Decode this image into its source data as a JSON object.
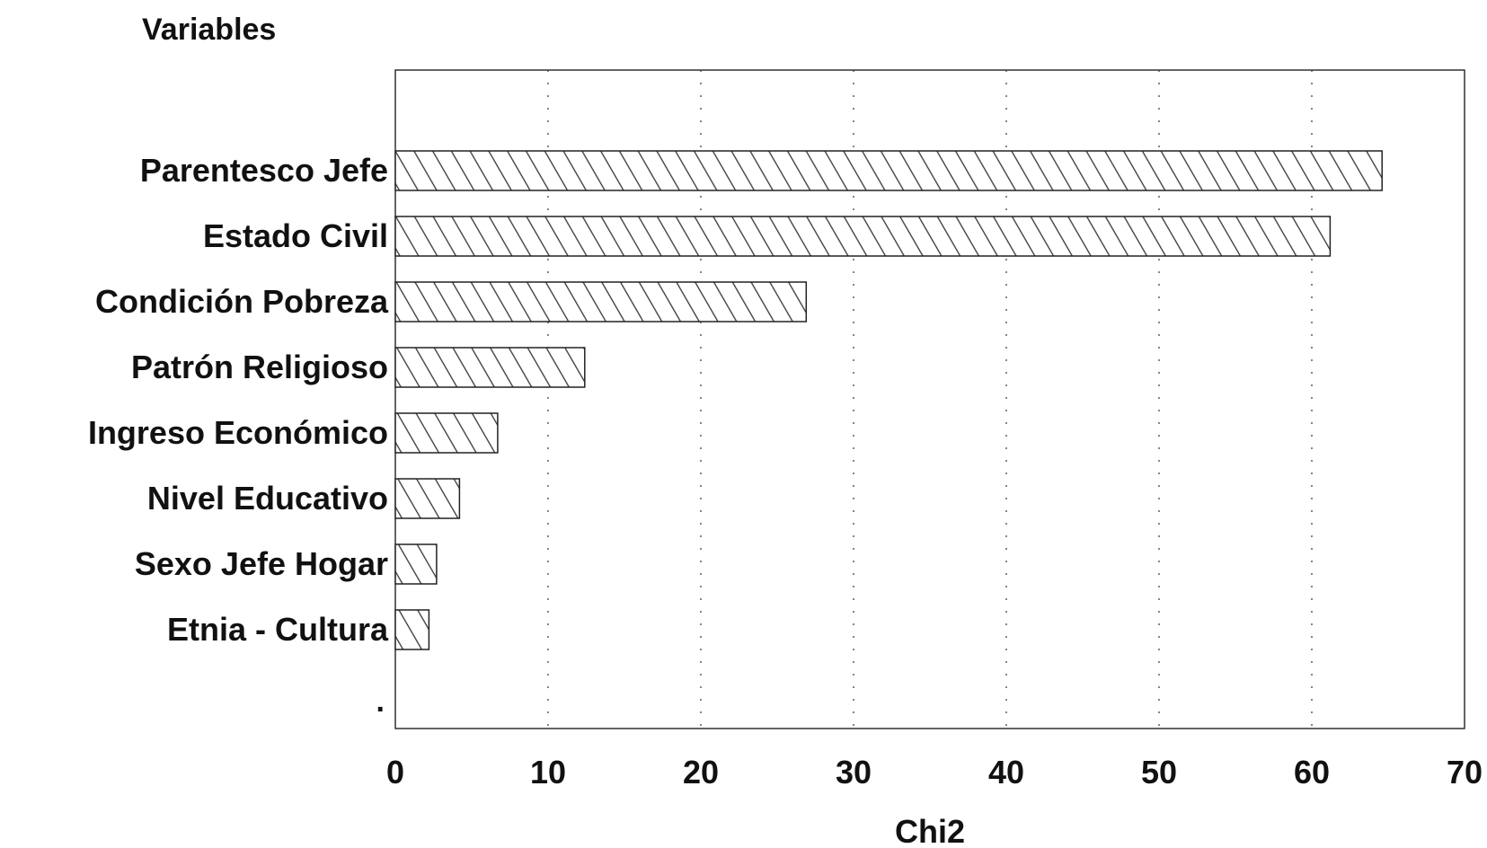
{
  "chart_data": {
    "type": "bar",
    "orientation": "horizontal",
    "title": "Variables",
    "xlabel": "Chi2",
    "ylabel": "",
    "categories": [
      "Parentesco  Jefe",
      "Estado Civil",
      "Condición Pobreza",
      "Patrón Religioso",
      "Ingreso Económico",
      "Nivel Educativo",
      "Sexo Jefe Hogar",
      "Etnia - Cultura"
    ],
    "values": [
      64.6,
      61.2,
      26.9,
      12.4,
      6.7,
      4.2,
      2.7,
      2.2
    ],
    "xlim": [
      0,
      70
    ],
    "xticks": [
      0,
      10,
      20,
      30,
      40,
      50,
      60,
      70
    ],
    "xtick_labels": [
      "0",
      "10",
      "20",
      "30",
      "40",
      "50",
      "60",
      "70"
    ],
    "extra_category_label": ".",
    "grid": "vertical dotted",
    "legend": "none",
    "bar_fill": "diagonal hatch",
    "colors": {
      "bar_stroke": "#222222",
      "hatch": "#333333",
      "background": "#ffffff",
      "grid": "#444444"
    }
  }
}
